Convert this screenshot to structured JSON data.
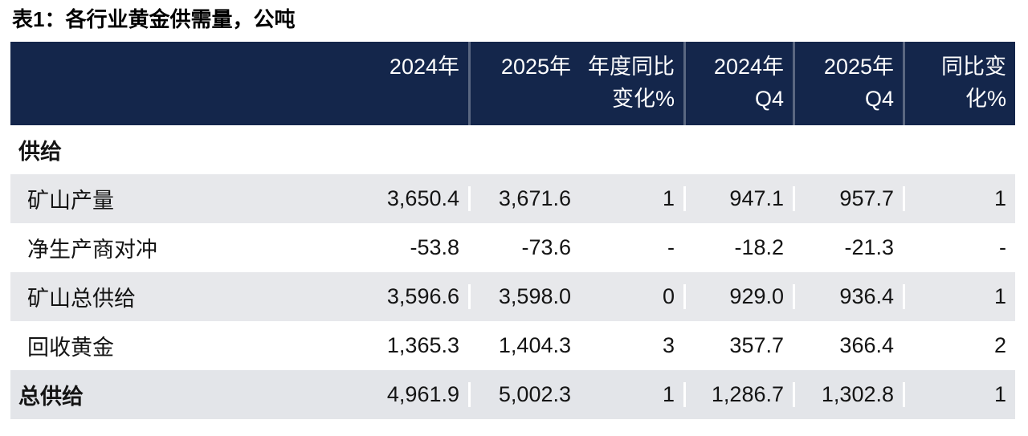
{
  "title": "表1：各行业黄金供需量，公吨",
  "colors": {
    "header_bg": "#14264b",
    "stripe_row_bg": "#e7e8eb",
    "total_row_bg": "#e3e5e9",
    "header_text": "#ffffff",
    "body_text": "#141414"
  },
  "header": {
    "cols": [
      {
        "line1": "",
        "line2": ""
      },
      {
        "line1": "2024年",
        "line2": ""
      },
      {
        "line1": "2025年",
        "line2": ""
      },
      {
        "line1": "年度同比",
        "line2": "变化%"
      },
      {
        "line1": "2024年",
        "line2": "Q4"
      },
      {
        "line1": "2025年",
        "line2": "Q4"
      },
      {
        "line1": "同比变",
        "line2": "化%"
      }
    ]
  },
  "rows": [
    {
      "label": "供给",
      "type": "section",
      "values": [
        "",
        "",
        "",
        "",
        "",
        ""
      ]
    },
    {
      "label": "矿山产量",
      "type": "data",
      "values": [
        "3,650.4",
        "3,671.6",
        "1",
        "947.1",
        "957.7",
        "1"
      ]
    },
    {
      "label": "净生产商对冲",
      "type": "data",
      "values": [
        "-53.8",
        "-73.6",
        "-",
        "-18.2",
        "-21.3",
        "-"
      ]
    },
    {
      "label": "矿山总供给",
      "type": "data",
      "values": [
        "3,596.6",
        "3,598.0",
        "0",
        "929.0",
        "936.4",
        "1"
      ]
    },
    {
      "label": "回收黄金",
      "type": "data",
      "values": [
        "1,365.3",
        "1,404.3",
        "3",
        "357.7",
        "366.4",
        "2"
      ]
    },
    {
      "label": "总供给",
      "type": "total",
      "values": [
        "4,961.9",
        "5,002.3",
        "1",
        "1,286.7",
        "1,302.8",
        "1"
      ]
    }
  ],
  "chart_data": {
    "type": "table",
    "title": "表1：各行业黄金供需量，公吨",
    "unit": "公吨",
    "columns": [
      "",
      "2024年",
      "2025年",
      "年度同比变化%",
      "2024年Q4",
      "2025年Q4",
      "同比变化%"
    ],
    "sections": [
      {
        "section": "供给",
        "rows": [
          {
            "label": "矿山产量",
            "y2024": 3650.4,
            "y2025": 3671.6,
            "yoy_change_pct": 1,
            "q4_2024": 947.1,
            "q4_2025": 957.7,
            "q4_yoy_change_pct": 1
          },
          {
            "label": "净生产商对冲",
            "y2024": -53.8,
            "y2025": -73.6,
            "yoy_change_pct": "-",
            "q4_2024": -18.2,
            "q4_2025": -21.3,
            "q4_yoy_change_pct": "-"
          },
          {
            "label": "矿山总供给",
            "y2024": 3596.6,
            "y2025": 3598.0,
            "yoy_change_pct": 0,
            "q4_2024": 929.0,
            "q4_2025": 936.4,
            "q4_yoy_change_pct": 1
          },
          {
            "label": "回收黄金",
            "y2024": 1365.3,
            "y2025": 1404.3,
            "yoy_change_pct": 3,
            "q4_2024": 357.7,
            "q4_2025": 366.4,
            "q4_yoy_change_pct": 2
          },
          {
            "label": "总供给",
            "y2024": 4961.9,
            "y2025": 5002.3,
            "yoy_change_pct": 1,
            "q4_2024": 1286.7,
            "q4_2025": 1302.8,
            "q4_yoy_change_pct": 1,
            "is_total": true
          }
        ]
      }
    ]
  }
}
